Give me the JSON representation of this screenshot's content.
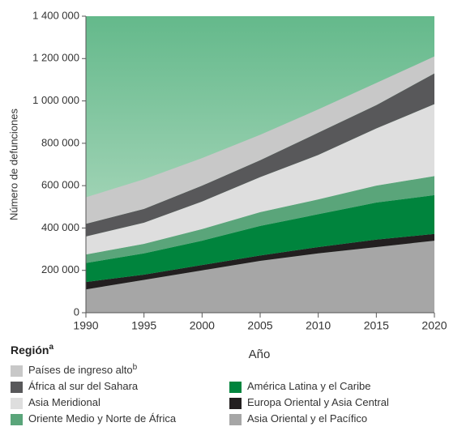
{
  "chart_data": {
    "type": "stacked_area",
    "y_label": "Número de defunciones",
    "x_label": "Año",
    "legend_title": "Región",
    "legend_title_marker": "a",
    "x": [
      1990,
      1995,
      2000,
      2005,
      2010,
      2015,
      2020
    ],
    "xlim": [
      1990,
      2020
    ],
    "xticks": [
      1990,
      1995,
      2000,
      2005,
      2010,
      2015,
      2020
    ],
    "ylim": [
      0,
      1400000
    ],
    "yticks": [
      {
        "value": 0,
        "label": "0"
      },
      {
        "value": 200000,
        "label": "200 000"
      },
      {
        "value": 400000,
        "label": "400 000"
      },
      {
        "value": 600000,
        "label": "600 000"
      },
      {
        "value": 800000,
        "label": "800 000"
      },
      {
        "value": 1000000,
        "label": "1 000 000"
      },
      {
        "value": 1200000,
        "label": "1 200 000"
      },
      {
        "value": 1400000,
        "label": "1 400 000"
      }
    ],
    "background_color": "#8ccaa6",
    "series": [
      {
        "name": "Países de ingreso alto",
        "marker": "b",
        "color": "#c8c8c8",
        "values": [
          125000,
          140000,
          130000,
          120000,
          110000,
          105000,
          80000
        ]
      },
      {
        "name": "África al sur del Sahara",
        "color": "#58585a",
        "values": [
          60000,
          65000,
          75000,
          80000,
          105000,
          110000,
          145000
        ]
      },
      {
        "name": "Asia Meridional",
        "color": "#dedede",
        "values": [
          85000,
          100000,
          130000,
          165000,
          210000,
          270000,
          340000
        ]
      },
      {
        "name": "Oriente Medio y Norte de África",
        "color": "#5aa57a",
        "values": [
          40000,
          45000,
          55000,
          65000,
          70000,
          80000,
          90000
        ]
      },
      {
        "name": "América Latina y el Caribe",
        "color": "#00843d",
        "values": [
          90000,
          100000,
          115000,
          140000,
          155000,
          175000,
          183000
        ]
      },
      {
        "name": "Europa Oriental y Asia Central",
        "color": "#231f20",
        "values": [
          35000,
          25000,
          25000,
          25000,
          30000,
          35000,
          32000
        ]
      },
      {
        "name": "Asia Oriental y el Pacífico",
        "color": "#a6a6a6",
        "values": [
          110000,
          155000,
          200000,
          245000,
          280000,
          310000,
          340000
        ]
      }
    ]
  }
}
